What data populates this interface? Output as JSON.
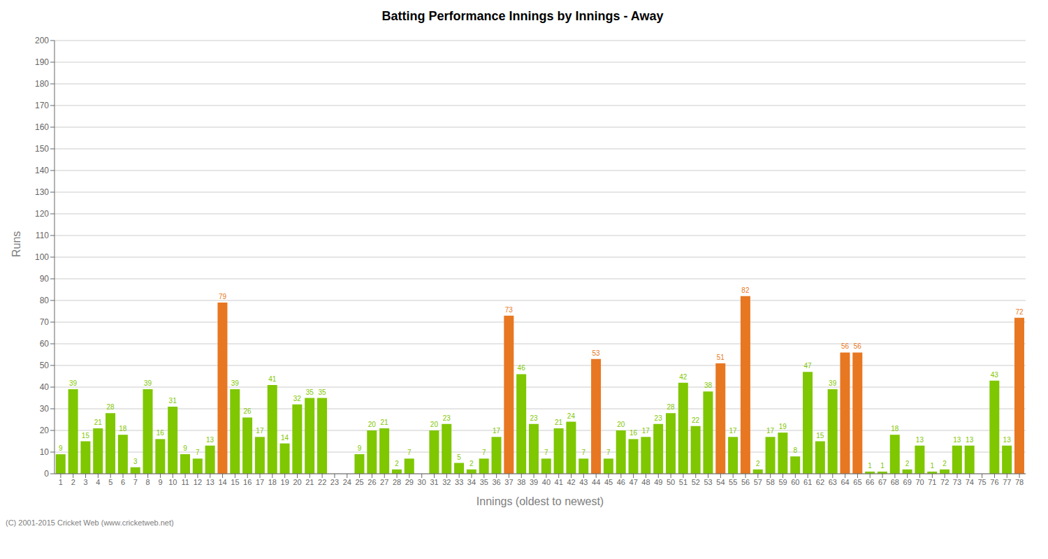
{
  "chart_data": {
    "type": "bar",
    "title": "Batting Performance Innings by Innings - Away",
    "xlabel": "Innings (oldest to newest)",
    "ylabel": "Runs",
    "categories": [
      "1",
      "2",
      "3",
      "4",
      "5",
      "6",
      "7",
      "8",
      "9",
      "10",
      "11",
      "12",
      "13",
      "14",
      "15",
      "16",
      "17",
      "18",
      "19",
      "20",
      "21",
      "22",
      "23",
      "24",
      "25",
      "26",
      "27",
      "28",
      "29",
      "30",
      "31",
      "32",
      "33",
      "34",
      "35",
      "36",
      "37",
      "38",
      "39",
      "40",
      "41",
      "42",
      "43",
      "44",
      "45",
      "46",
      "47",
      "48",
      "49",
      "50",
      "51",
      "52",
      "53",
      "54",
      "55",
      "56",
      "57",
      "58",
      "59",
      "60",
      "61",
      "62",
      "63",
      "64",
      "65",
      "66",
      "67",
      "68",
      "69",
      "70",
      "71",
      "72",
      "73",
      "74",
      "75",
      "76",
      "77",
      "78"
    ],
    "values": [
      9,
      39,
      15,
      21,
      28,
      18,
      3,
      39,
      16,
      31,
      9,
      7,
      13,
      79,
      39,
      26,
      17,
      41,
      14,
      32,
      35,
      35,
      0,
      0,
      9,
      20,
      21,
      2,
      7,
      0,
      20,
      23,
      5,
      2,
      7,
      17,
      73,
      46,
      23,
      7,
      21,
      24,
      7,
      53,
      7,
      20,
      16,
      17,
      23,
      28,
      42,
      22,
      38,
      51,
      17,
      82,
      2,
      17,
      19,
      8,
      47,
      15,
      39,
      56,
      56,
      1,
      1,
      18,
      2,
      13,
      1,
      2,
      13,
      13,
      0,
      43,
      13,
      72
    ],
    "colors": [
      "#7fc700",
      "#7fc700",
      "#7fc700",
      "#7fc700",
      "#7fc700",
      "#7fc700",
      "#7fc700",
      "#7fc700",
      "#7fc700",
      "#7fc700",
      "#7fc700",
      "#7fc700",
      "#7fc700",
      "#e87722",
      "#7fc700",
      "#7fc700",
      "#7fc700",
      "#7fc700",
      "#7fc700",
      "#7fc700",
      "#7fc700",
      "#7fc700",
      "#7fc700",
      "#7fc700",
      "#7fc700",
      "#7fc700",
      "#7fc700",
      "#7fc700",
      "#7fc700",
      "#7fc700",
      "#7fc700",
      "#7fc700",
      "#7fc700",
      "#7fc700",
      "#7fc700",
      "#7fc700",
      "#e87722",
      "#7fc700",
      "#7fc700",
      "#7fc700",
      "#7fc700",
      "#7fc700",
      "#7fc700",
      "#e87722",
      "#7fc700",
      "#7fc700",
      "#7fc700",
      "#7fc700",
      "#7fc700",
      "#7fc700",
      "#7fc700",
      "#7fc700",
      "#7fc700",
      "#e87722",
      "#7fc700",
      "#e87722",
      "#7fc700",
      "#7fc700",
      "#7fc700",
      "#7fc700",
      "#7fc700",
      "#7fc700",
      "#7fc700",
      "#e87722",
      "#e87722",
      "#7fc700",
      "#7fc700",
      "#7fc700",
      "#7fc700",
      "#7fc700",
      "#7fc700",
      "#7fc700",
      "#7fc700",
      "#7fc700",
      "#7fc700",
      "#7fc700",
      "#7fc700",
      "#e87722"
    ],
    "ylim": [
      0,
      200
    ],
    "yticks": [
      0,
      10,
      20,
      30,
      40,
      50,
      60,
      70,
      80,
      90,
      100,
      110,
      120,
      130,
      140,
      150,
      160,
      170,
      180,
      190,
      200
    ],
    "grid": true,
    "data_labels": true,
    "annotations": [
      "(C) 2001-2015 Cricket Web (www.cricketweb.net)"
    ]
  }
}
